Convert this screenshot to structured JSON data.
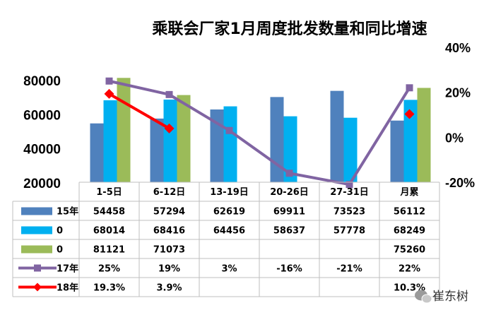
{
  "chart_data": {
    "type": "bar",
    "title": "乘联会厂家1月周度批发数量和同比增速",
    "categories": [
      "1-5日",
      "6-12日",
      "13-19日",
      "20-26日",
      "27-31日",
      "月累"
    ],
    "y_left": {
      "min": 20000,
      "max": 80000,
      "ticks": [
        "20000",
        "40000",
        "60000",
        "80000"
      ]
    },
    "y_right": {
      "min": -20,
      "max": 40,
      "ticks": [
        "-20%",
        "0%",
        "20%",
        "40%"
      ]
    },
    "bar_series": [
      {
        "name": "15年",
        "color": "#4F81BD",
        "values": [
          54458,
          57294,
          62619,
          69911,
          73523,
          56112
        ],
        "labels": [
          "54458",
          "57294",
          "62619",
          "69911",
          "73523",
          "56112"
        ]
      },
      {
        "name": "0",
        "color": "#00B0F0",
        "values": [
          68014,
          68416,
          64456,
          58637,
          57778,
          68249
        ],
        "labels": [
          "68014",
          "68416",
          "64456",
          "58637",
          "57778",
          "68249"
        ]
      },
      {
        "name": "0",
        "color": "#9BBB59",
        "values": [
          81121,
          71073,
          null,
          null,
          null,
          75260
        ],
        "labels": [
          "81121",
          "71073",
          "",
          "",
          "",
          "75260"
        ]
      }
    ],
    "line_series": [
      {
        "name": "17年",
        "color": "#8064A2",
        "marker": "square",
        "connect": [
          0,
          1,
          2,
          3,
          4,
          5
        ],
        "values": [
          25,
          19,
          3,
          -16,
          -21,
          22
        ],
        "labels": [
          "25%",
          "19%",
          "3%",
          "-16%",
          "-21%",
          "22%"
        ]
      },
      {
        "name": "18年",
        "color": "#FF0000",
        "marker": "diamond",
        "connect": [
          0,
          1
        ],
        "values": [
          19.3,
          3.9,
          null,
          null,
          null,
          10.3
        ],
        "labels": [
          "19.3%",
          "3.9%",
          "",
          "",
          "",
          "10.3%"
        ]
      }
    ]
  },
  "watermark": "崔东树",
  "watermark_icon": "wechat-icon"
}
